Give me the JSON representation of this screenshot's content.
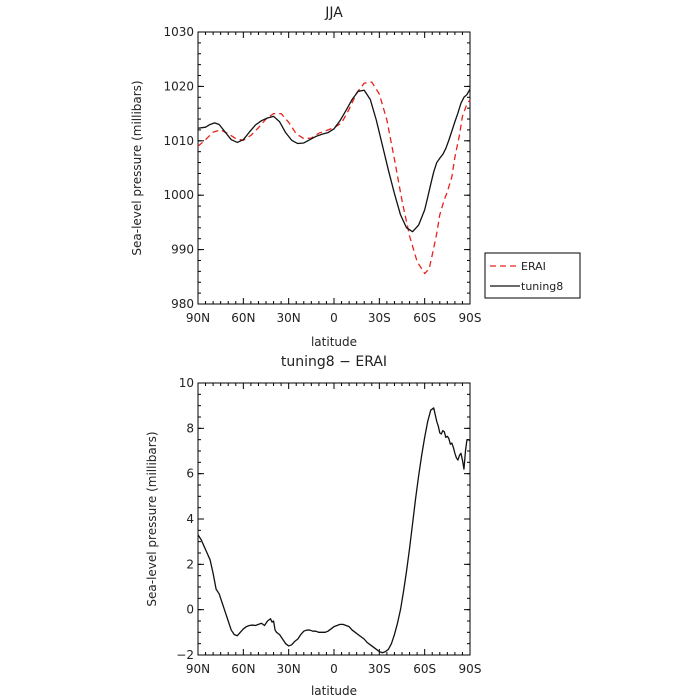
{
  "chart_data": [
    {
      "type": "line",
      "title": "JJA",
      "xlabel": "latitude",
      "ylabel": "Sea-level pressure (millibars)",
      "xlim": [
        90,
        -90
      ],
      "ylim": [
        980,
        1030
      ],
      "xtick_values": [
        90,
        60,
        30,
        0,
        -30,
        -60,
        -90
      ],
      "xtick_labels": [
        "90N",
        "60N",
        "30N",
        "0",
        "30S",
        "60S",
        "90S"
      ],
      "ytick_values": [
        980,
        990,
        1000,
        1010,
        1020,
        1030
      ],
      "ytick_labels": [
        "980",
        "990",
        "1000",
        "1010",
        "1020",
        "1030"
      ],
      "legend_position": "right",
      "series": [
        {
          "name": "ERAI",
          "color": "#e8211c",
          "dash": "dashed",
          "x": [
            90,
            85,
            80,
            75,
            70,
            65,
            60,
            55,
            50,
            45,
            40,
            35,
            30,
            25,
            20,
            15,
            10,
            5,
            0,
            -5,
            -10,
            -15,
            -20,
            -25,
            -30,
            -35,
            -40,
            -45,
            -50,
            -55,
            -60,
            -63,
            -65,
            -68,
            -70,
            -73,
            -75,
            -78,
            -80,
            -83,
            -85,
            -88,
            -90
          ],
          "y": [
            1009.0,
            1010.2,
            1011.6,
            1012.0,
            1011.3,
            1010.4,
            1010.1,
            1011.0,
            1012.4,
            1014.0,
            1015.0,
            1015.0,
            1013.4,
            1011.3,
            1010.4,
            1010.5,
            1011.4,
            1011.9,
            1012.4,
            1013.3,
            1015.8,
            1018.8,
            1020.6,
            1020.8,
            1018.6,
            1013.8,
            1006.6,
            999.0,
            992.5,
            987.8,
            985.6,
            986.5,
            989.0,
            993.0,
            996.4,
            999.2,
            1000.6,
            1003.4,
            1007.0,
            1011.0,
            1014.5,
            1016.8,
            1017.5
          ]
        },
        {
          "name": "tuning8",
          "color": "#111111",
          "dash": "solid",
          "x": [
            90,
            85,
            82,
            79,
            76,
            72,
            68,
            64,
            60,
            56,
            52,
            48,
            44,
            40,
            36,
            32,
            28,
            24,
            20,
            16,
            12,
            8,
            4,
            0,
            -4,
            -8,
            -12,
            -16,
            -20,
            -24,
            -28,
            -32,
            -36,
            -40,
            -44,
            -48,
            -52,
            -56,
            -60,
            -62,
            -64,
            -66,
            -68,
            -70,
            -72,
            -74,
            -76,
            -78,
            -80,
            -82,
            -84,
            -86,
            -88,
            -90
          ],
          "y": [
            1012.3,
            1012.5,
            1013.0,
            1013.3,
            1013.0,
            1011.6,
            1010.2,
            1009.7,
            1010.2,
            1011.6,
            1012.9,
            1013.7,
            1014.2,
            1014.5,
            1013.5,
            1011.5,
            1010.1,
            1009.5,
            1009.6,
            1010.2,
            1010.8,
            1011.2,
            1011.5,
            1012.2,
            1013.7,
            1015.6,
            1017.6,
            1019.1,
            1019.3,
            1017.6,
            1013.8,
            1009.2,
            1004.6,
            1000.3,
            996.4,
            994.0,
            993.3,
            994.5,
            997.3,
            999.6,
            1002.0,
            1004.3,
            1006.0,
            1006.8,
            1007.5,
            1008.6,
            1010.1,
            1011.8,
            1013.5,
            1015.1,
            1016.9,
            1018.0,
            1018.5,
            1019.5
          ]
        }
      ]
    },
    {
      "type": "line",
      "title": "tuning8 − ERAI",
      "xlabel": "latitude",
      "ylabel": "Sea-level pressure (millibars)",
      "xlim": [
        90,
        -90
      ],
      "ylim": [
        -2,
        10
      ],
      "xtick_values": [
        90,
        60,
        30,
        0,
        -30,
        -60,
        -90
      ],
      "xtick_labels": [
        "90N",
        "60N",
        "30N",
        "0",
        "30S",
        "60S",
        "90S"
      ],
      "ytick_values": [
        -2,
        0,
        2,
        4,
        6,
        8,
        10
      ],
      "ytick_labels": [
        "−2",
        "0",
        "2",
        "4",
        "6",
        "8",
        "10"
      ],
      "series": [
        {
          "color": "#111111",
          "dash": "solid",
          "x": [
            90,
            88,
            86,
            84,
            82,
            80,
            78,
            76,
            74,
            72,
            70,
            68,
            66,
            64,
            62,
            60,
            58,
            56,
            54,
            52,
            50,
            48,
            46,
            44,
            42,
            41,
            40,
            39,
            38,
            37,
            36,
            35,
            34,
            32,
            30,
            28,
            26,
            24,
            22,
            20,
            18,
            16,
            14,
            12,
            10,
            8,
            6,
            4,
            2,
            0,
            -2,
            -4,
            -6,
            -8,
            -10,
            -12,
            -14,
            -16,
            -18,
            -20,
            -22,
            -24,
            -26,
            -28,
            -30,
            -32,
            -34,
            -36,
            -38,
            -40,
            -42,
            -44,
            -46,
            -48,
            -50,
            -52,
            -54,
            -56,
            -58,
            -60,
            -62,
            -64,
            -66,
            -67,
            -68,
            -69,
            -70,
            -71,
            -72,
            -73,
            -74,
            -75,
            -76,
            -77,
            -78,
            -79,
            -80,
            -81,
            -82,
            -83,
            -84,
            -85,
            -86,
            -87,
            -88,
            -89,
            -90
          ],
          "y": [
            3.3,
            3.1,
            2.8,
            2.5,
            2.2,
            1.6,
            0.9,
            0.7,
            0.3,
            -0.1,
            -0.5,
            -0.9,
            -1.1,
            -1.15,
            -1.0,
            -0.85,
            -0.75,
            -0.7,
            -0.68,
            -0.7,
            -0.65,
            -0.6,
            -0.7,
            -0.5,
            -0.4,
            -0.55,
            -0.5,
            -0.9,
            -1.0,
            -1.05,
            -1.1,
            -1.2,
            -1.3,
            -1.5,
            -1.6,
            -1.55,
            -1.4,
            -1.3,
            -1.1,
            -0.95,
            -0.9,
            -0.9,
            -0.95,
            -0.95,
            -1.0,
            -1.0,
            -1.0,
            -0.95,
            -0.85,
            -0.75,
            -0.7,
            -0.65,
            -0.65,
            -0.7,
            -0.75,
            -0.9,
            -1.0,
            -1.1,
            -1.2,
            -1.3,
            -1.45,
            -1.55,
            -1.65,
            -1.75,
            -1.85,
            -1.9,
            -1.85,
            -1.75,
            -1.5,
            -1.1,
            -0.6,
            0.0,
            0.8,
            1.7,
            2.7,
            3.8,
            4.9,
            5.9,
            6.8,
            7.6,
            8.3,
            8.8,
            8.9,
            8.6,
            8.3,
            8.1,
            7.8,
            7.75,
            7.9,
            7.85,
            7.6,
            7.65,
            7.55,
            7.3,
            7.35,
            7.15,
            6.9,
            6.7,
            6.6,
            6.8,
            6.9,
            6.6,
            6.2,
            7.0,
            7.5,
            7.5,
            7.45
          ]
        }
      ]
    }
  ]
}
